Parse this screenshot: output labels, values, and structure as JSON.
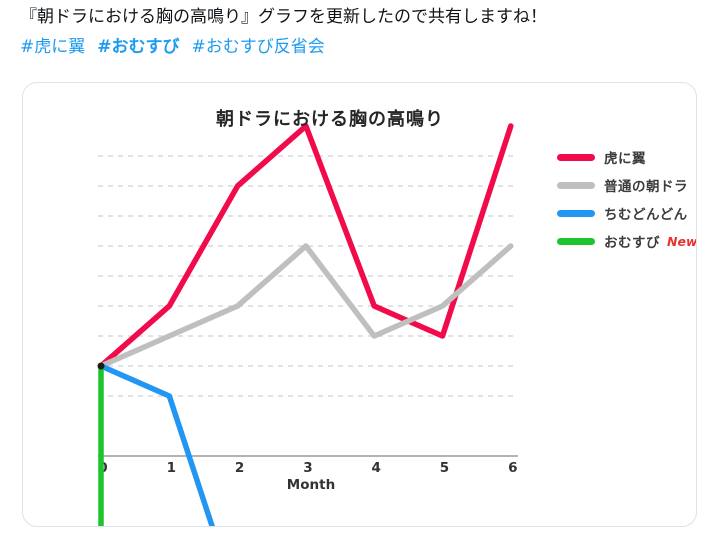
{
  "tweet": {
    "text": "『朝ドラにおける胸の高鳴り』グラフを更新したので共有しますね！",
    "hashtags": [
      {
        "label": "#虎に翼",
        "bold": false
      },
      {
        "label": "#おむすび",
        "bold": true
      },
      {
        "label": "#おむすび反省会",
        "bold": false
      }
    ]
  },
  "colors": {
    "text_dark": "#0f1419",
    "link_blue": "#1d9bf0",
    "card_border": "#dde3ea",
    "grid": "#d9d9d9",
    "axis": "#9a9a9a",
    "origin_dot": "#1b1b1b",
    "new_badge": "#e8332d"
  },
  "chart_data": {
    "type": "line",
    "title": "朝ドラにおける胸の高鳴り",
    "xlabel": "Month",
    "ylabel": "",
    "x_ticks": [
      0,
      1,
      2,
      3,
      4,
      5,
      6
    ],
    "xlim": [
      0,
      6
    ],
    "ylim": [
      0,
      11
    ],
    "y_gridlines_values": [
      2,
      3,
      4,
      5,
      6,
      7,
      8,
      9,
      10
    ],
    "y_tick_labels_visible": false,
    "grid": "dashed horizontal",
    "legend_position": "right",
    "series": [
      {
        "name": "虎に翼",
        "color": "#f10b4b",
        "points": [
          [
            0,
            3
          ],
          [
            1,
            5
          ],
          [
            2,
            9
          ],
          [
            3,
            11
          ],
          [
            4,
            5
          ],
          [
            5,
            4
          ],
          [
            6,
            11
          ]
        ]
      },
      {
        "name": "普通の朝ドラ",
        "color": "#bfbfbf",
        "points": [
          [
            0,
            3
          ],
          [
            1,
            4
          ],
          [
            2,
            5
          ],
          [
            3,
            7
          ],
          [
            4,
            4
          ],
          [
            5,
            5
          ],
          [
            6,
            7
          ]
        ]
      },
      {
        "name": "ちむどんどん",
        "color": "#2196f3",
        "points": [
          [
            0,
            3
          ],
          [
            1,
            2
          ],
          [
            1.65,
            -2.5
          ]
        ],
        "note": "plunges below the x-axis and off the bottom of the chart after month 1"
      },
      {
        "name": "おむすび",
        "color": "#1ec42e",
        "badge": "New!",
        "points": [
          [
            0,
            3
          ],
          [
            0,
            -2.5
          ]
        ],
        "note": "vertical drop straight off the bottom of the chart at month 0"
      }
    ],
    "annotations": [
      "all series share a common starting point marked with a black dot at month 0"
    ]
  }
}
